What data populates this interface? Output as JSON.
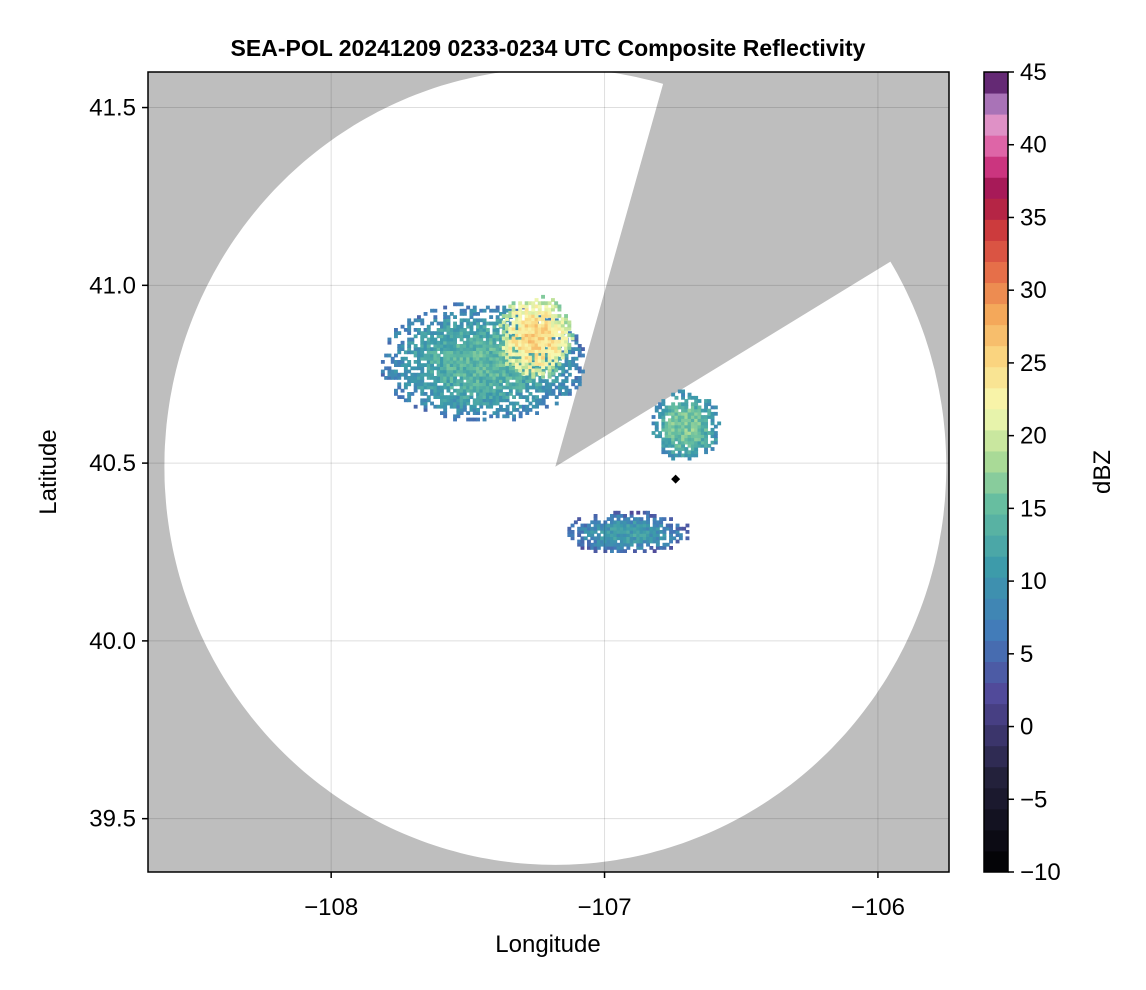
{
  "chart_data": {
    "type": "heatmap",
    "title": "SEA-POL 20241209 0233-0234 UTC Composite Reflectivity",
    "xlabel": "Longitude",
    "ylabel": "Latitude",
    "xlim": [
      -108.67,
      -105.74
    ],
    "ylim": [
      39.35,
      41.6
    ],
    "xticks": [
      -108,
      -107,
      -106
    ],
    "xtick_labels": [
      "−108",
      "−107",
      "−106"
    ],
    "yticks": [
      39.5,
      40.0,
      40.5,
      41.0,
      41.5
    ],
    "ytick_labels": [
      "39.5",
      "40.0",
      "40.5",
      "41.0",
      "41.5"
    ],
    "grid": true,
    "background_color": "#bebebe",
    "coverage_color": "#ffffff",
    "radar": {
      "center": [
        -107.18,
        40.49
      ],
      "range_lat_deg": 1.12,
      "range_lon_deg": 1.43,
      "blocked_sector_deg": [
        16,
        59
      ]
    },
    "marker": {
      "lon": -106.74,
      "lat": 40.455,
      "shape": "diamond",
      "color": "#000000"
    },
    "colorbar": {
      "label": "dBZ",
      "min": -10,
      "max": 45,
      "ticks": [
        -10,
        -5,
        0,
        5,
        10,
        15,
        20,
        25,
        30,
        35,
        40,
        45
      ],
      "tick_labels": [
        "−10",
        "−5",
        "0",
        "5",
        "10",
        "15",
        "20",
        "25",
        "30",
        "35",
        "40",
        "45"
      ],
      "colormap": "spectral",
      "bands": 38
    },
    "echo_regions": [
      {
        "name": "northwest-cluster",
        "center": [
          -107.45,
          40.78
        ],
        "radii": [
          0.38,
          0.17
        ],
        "peak_dbz": 17
      },
      {
        "name": "north-core",
        "center": [
          -107.26,
          40.85
        ],
        "radii": [
          0.14,
          0.12
        ],
        "peak_dbz": 28
      },
      {
        "name": "east-cluster",
        "center": [
          -106.71,
          40.6
        ],
        "radii": [
          0.13,
          0.1
        ],
        "peak_dbz": 19
      },
      {
        "name": "south-band",
        "center": [
          -106.92,
          40.3
        ],
        "radii": [
          0.24,
          0.06
        ],
        "peak_dbz": 14
      }
    ]
  }
}
